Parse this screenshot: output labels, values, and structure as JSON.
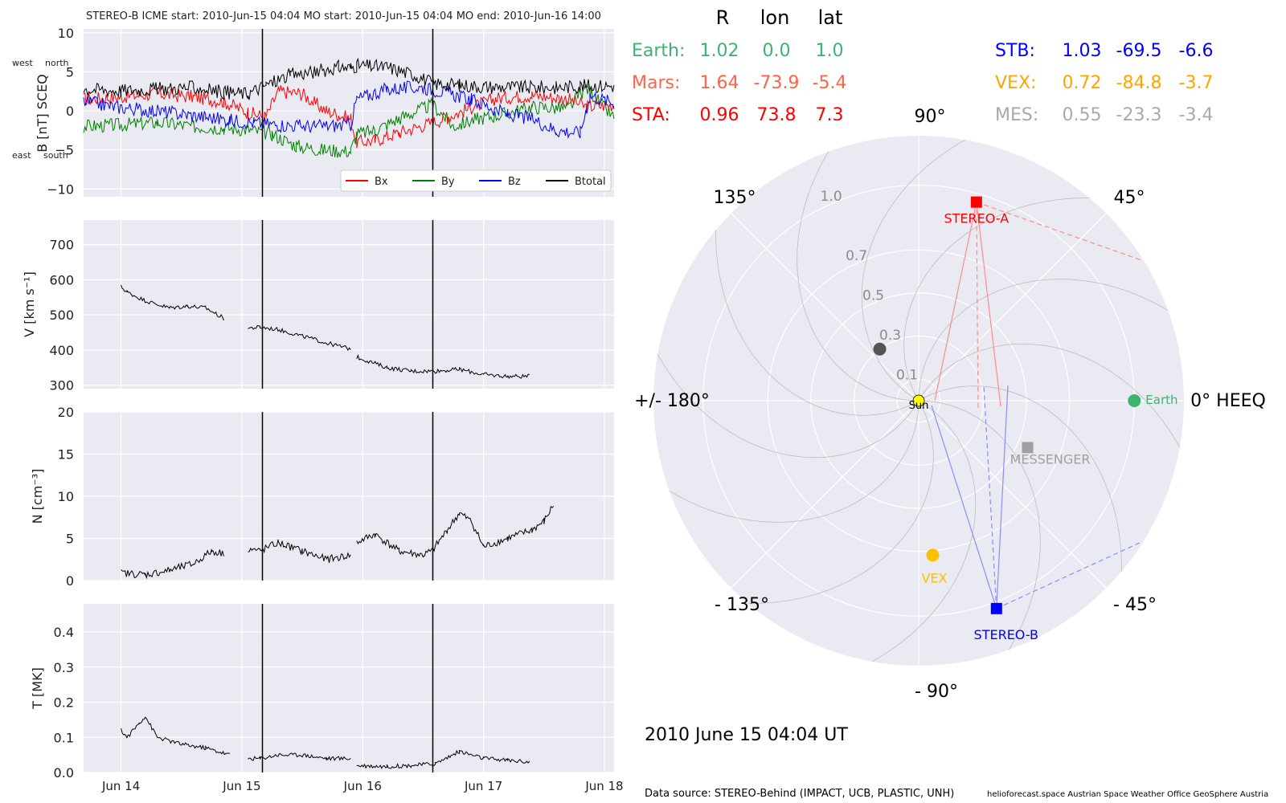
{
  "header": "STEREO-B    ICME start: 2010-Jun-15 04:04   MO start: 2010-Jun-15 04:04   MO end: 2010-Jun-16 14:00",
  "x_ticks": [
    "Jun 14",
    "Jun 15",
    "Jun 16",
    "Jun 17",
    "Jun 18"
  ],
  "chart_data": [
    {
      "type": "line",
      "name": "magnetic field",
      "ylabel": "B [nT] SCEQ",
      "orientation_labels": {
        "west": "west",
        "north": "north",
        "east": "east",
        "south": "south"
      },
      "x_unit": "days since 2010-06-13 00:00",
      "xlim": [
        0.69,
        5.08
      ],
      "ylim": [
        -11,
        10.5
      ],
      "ytick_labels": [
        "−10",
        "−5",
        "0",
        "5",
        "10"
      ],
      "yticks": [
        -10,
        -5,
        0,
        5,
        10
      ],
      "event_lines": [
        2.17,
        3.58
      ],
      "data_gap": [
        1.89,
        2.9
      ],
      "legend": {
        "placement": "lower-right",
        "entries": [
          "Bx",
          "By",
          "Bz",
          "Btotal"
        ]
      },
      "series": [
        {
          "name": "Bx",
          "color": "#ff0000",
          "points": [
            [
              0.69,
              1.5
            ],
            [
              1.0,
              1.8
            ],
            [
              1.3,
              2.2
            ],
            [
              1.6,
              1.8
            ],
            [
              1.85,
              1.2
            ],
            [
              2.05,
              -0.2
            ],
            [
              2.2,
              -0.8
            ],
            [
              2.3,
              2.5
            ],
            [
              2.5,
              2.2
            ],
            [
              2.6,
              1.0
            ],
            [
              2.7,
              0.0
            ],
            [
              2.8,
              -0.5
            ],
            [
              2.9,
              -1.0
            ],
            [
              2.95,
              -4.0
            ],
            [
              3.1,
              -3.8
            ],
            [
              3.3,
              -2.8
            ],
            [
              3.58,
              -1.5
            ],
            [
              3.7,
              -0.8
            ],
            [
              3.9,
              0.4
            ],
            [
              4.1,
              1.6
            ],
            [
              4.4,
              2.0
            ],
            [
              4.7,
              1.5
            ],
            [
              4.85,
              0.5
            ],
            [
              5.08,
              0.8
            ]
          ]
        },
        {
          "name": "By",
          "color": "#008000",
          "points": [
            [
              0.69,
              -2.0
            ],
            [
              1.0,
              -1.8
            ],
            [
              1.3,
              -1.5
            ],
            [
              1.6,
              -2.0
            ],
            [
              1.85,
              -2.2
            ],
            [
              2.05,
              -2.4
            ],
            [
              2.25,
              -3.0
            ],
            [
              2.45,
              -4.5
            ],
            [
              2.65,
              -5.0
            ],
            [
              2.9,
              -5.2
            ],
            [
              2.95,
              -3.0
            ],
            [
              3.1,
              -2.5
            ],
            [
              3.3,
              -1.0
            ],
            [
              3.58,
              0.8
            ],
            [
              3.75,
              -2.0
            ],
            [
              3.95,
              -1.0
            ],
            [
              4.15,
              -0.5
            ],
            [
              4.4,
              0.5
            ],
            [
              4.7,
              0.3
            ],
            [
              4.85,
              3.0
            ],
            [
              5.08,
              -1.0
            ]
          ]
        },
        {
          "name": "Bz",
          "color": "#0000ff",
          "points": [
            [
              0.69,
              1.2
            ],
            [
              0.95,
              0.5
            ],
            [
              1.15,
              0.2
            ],
            [
              1.4,
              -0.2
            ],
            [
              1.7,
              -0.8
            ],
            [
              1.9,
              -1.2
            ],
            [
              2.1,
              -1.5
            ],
            [
              2.3,
              -1.8
            ],
            [
              2.6,
              -2.0
            ],
            [
              2.9,
              -1.8
            ],
            [
              2.95,
              1.5
            ],
            [
              3.2,
              2.8
            ],
            [
              3.5,
              3.0
            ],
            [
              3.7,
              2.3
            ],
            [
              3.9,
              1.4
            ],
            [
              4.05,
              0.5
            ],
            [
              4.2,
              -0.5
            ],
            [
              4.4,
              -1.0
            ],
            [
              4.6,
              -2.5
            ],
            [
              4.8,
              -2.8
            ],
            [
              4.88,
              2.0
            ],
            [
              5.08,
              1.0
            ]
          ]
        },
        {
          "name": "Btotal",
          "color": "#000000",
          "points": [
            [
              0.69,
              2.8
            ],
            [
              1.0,
              2.6
            ],
            [
              1.3,
              2.8
            ],
            [
              1.6,
              3.0
            ],
            [
              1.85,
              2.4
            ],
            [
              2.05,
              2.2
            ],
            [
              2.2,
              3.3
            ],
            [
              2.4,
              4.6
            ],
            [
              2.6,
              5.0
            ],
            [
              2.8,
              5.6
            ],
            [
              2.9,
              5.5
            ],
            [
              2.95,
              5.8
            ],
            [
              3.2,
              5.6
            ],
            [
              3.45,
              4.5
            ],
            [
              3.58,
              3.5
            ],
            [
              3.8,
              3.3
            ],
            [
              4.0,
              3.1
            ],
            [
              4.3,
              3.0
            ],
            [
              4.6,
              3.0
            ],
            [
              4.8,
              3.2
            ],
            [
              5.08,
              3.2
            ]
          ]
        }
      ]
    },
    {
      "type": "line",
      "name": "speed",
      "ylabel": "V [km s⁻¹]",
      "x_unit": "days since 2010-06-13 00:00",
      "xlim": [
        0.69,
        5.08
      ],
      "ylim": [
        290,
        770
      ],
      "yticks": [
        300,
        400,
        500,
        600,
        700
      ],
      "ytick_labels": [
        "300",
        "400",
        "500",
        "600",
        "700"
      ],
      "event_lines": [
        2.17,
        3.58
      ],
      "series": [
        {
          "name": "V",
          "color": "#000000",
          "points": [
            [
              1.0,
              580
            ],
            [
              1.05,
              565
            ],
            [
              1.2,
              540
            ],
            [
              1.4,
              520
            ],
            [
              1.55,
              525
            ],
            [
              1.7,
              520
            ],
            [
              1.85,
              490
            ],
            [
              2.0,
              470
            ],
            [
              2.05,
              462
            ],
            [
              2.15,
              465
            ],
            [
              2.3,
              458
            ],
            [
              2.5,
              440
            ],
            [
              2.7,
              420
            ],
            [
              2.9,
              403
            ],
            [
              2.95,
              380
            ],
            [
              3.2,
              350
            ],
            [
              3.4,
              340
            ],
            [
              3.6,
              340
            ],
            [
              3.8,
              345
            ],
            [
              4.0,
              330
            ],
            [
              4.2,
              325
            ],
            [
              4.38,
              325
            ],
            [
              4.65,
              310
            ],
            [
              4.9,
              308
            ],
            [
              5.08,
              307
            ]
          ]
        }
      ]
    },
    {
      "type": "line",
      "name": "density",
      "ylabel": "N [cm⁻³]",
      "x_unit": "days since 2010-06-13 00:00",
      "xlim": [
        0.69,
        5.08
      ],
      "ylim": [
        0,
        20
      ],
      "yticks": [
        0,
        5,
        10,
        15,
        20
      ],
      "ytick_labels": [
        "0",
        "5",
        "10",
        "15",
        "20"
      ],
      "event_lines": [
        2.17,
        3.58
      ],
      "series": [
        {
          "name": "N",
          "color": "#000000",
          "points": [
            [
              1.0,
              0.9
            ],
            [
              1.2,
              0.7
            ],
            [
              1.4,
              1.2
            ],
            [
              1.6,
              2.0
            ],
            [
              1.75,
              3.5
            ],
            [
              1.85,
              3.2
            ],
            [
              2.0,
              3.0
            ],
            [
              2.05,
              3.8
            ],
            [
              2.15,
              3.5
            ],
            [
              2.3,
              4.5
            ],
            [
              2.5,
              3.5
            ],
            [
              2.7,
              2.5
            ],
            [
              2.9,
              3.0
            ],
            [
              2.95,
              4.5
            ],
            [
              3.1,
              5.5
            ],
            [
              3.3,
              3.5
            ],
            [
              3.5,
              3.0
            ],
            [
              3.58,
              3.6
            ],
            [
              3.7,
              6.0
            ],
            [
              3.8,
              8.0
            ],
            [
              3.9,
              7.0
            ],
            [
              4.0,
              4.0
            ],
            [
              4.2,
              5.0
            ],
            [
              4.4,
              6.0
            ],
            [
              4.5,
              7.0
            ],
            [
              4.58,
              9.0
            ],
            [
              4.65,
              5.5
            ],
            [
              4.9,
              4.5
            ],
            [
              5.08,
              5.0
            ]
          ]
        }
      ]
    },
    {
      "type": "line",
      "name": "temperature",
      "ylabel": "T [MK]",
      "x_unit": "days since 2010-06-13 00:00",
      "xlim": [
        0.69,
        5.08
      ],
      "ylim": [
        0,
        0.48
      ],
      "yticks": [
        0,
        0.1,
        0.2,
        0.3,
        0.4
      ],
      "ytick_labels": [
        "0.0",
        "0.1",
        "0.2",
        "0.3",
        "0.4"
      ],
      "event_lines": [
        2.17,
        3.58
      ],
      "series": [
        {
          "name": "T",
          "color": "#000000",
          "points": [
            [
              1.0,
              0.12
            ],
            [
              1.05,
              0.1
            ],
            [
              1.15,
              0.14
            ],
            [
              1.2,
              0.16
            ],
            [
              1.3,
              0.1
            ],
            [
              1.5,
              0.08
            ],
            [
              1.7,
              0.07
            ],
            [
              1.9,
              0.05
            ],
            [
              2.05,
              0.04
            ],
            [
              2.15,
              0.04
            ],
            [
              2.3,
              0.05
            ],
            [
              2.5,
              0.05
            ],
            [
              2.7,
              0.04
            ],
            [
              2.9,
              0.04
            ],
            [
              2.95,
              0.02
            ],
            [
              3.2,
              0.017
            ],
            [
              3.4,
              0.02
            ],
            [
              3.6,
              0.025
            ],
            [
              3.8,
              0.06
            ],
            [
              4.0,
              0.04
            ],
            [
              4.2,
              0.035
            ],
            [
              4.38,
              0.03
            ],
            [
              4.65,
              0.03
            ],
            [
              4.9,
              0.025
            ],
            [
              5.08,
              0.025
            ]
          ]
        }
      ]
    },
    {
      "type": "scatter",
      "name": "HEEQ polar position",
      "coordinate_system": "0° HEEQ",
      "radial_ticks": [
        0.1,
        0.3,
        0.5,
        0.7,
        1.0
      ],
      "radial_tick_labels": [
        "0.1",
        "0.3",
        "0.5",
        "0.7",
        "1.0"
      ],
      "angle_labels": [
        "0° HEEQ",
        "45°",
        "90°",
        "135°",
        "+/- 180°",
        "- 135°",
        "- 90°",
        "- 45°"
      ],
      "rmax": 1.23,
      "bodies": [
        {
          "name": "Sun",
          "label": "Sun",
          "r": 0.0,
          "lon": 0.0,
          "color": "#ffff00",
          "marker": "circle"
        },
        {
          "name": "Earth",
          "label": "Earth",
          "r": 1.0,
          "lon": 0.0,
          "color": "#3cb371",
          "marker": "circle"
        },
        {
          "name": "STEREO-A",
          "label": "STEREO-A",
          "r": 0.96,
          "lon": 73.8,
          "color": "#ff0000",
          "marker": "square"
        },
        {
          "name": "STEREO-B",
          "label": "STEREO-B",
          "r": 1.03,
          "lon": -69.5,
          "color": "#0000ff",
          "marker": "square"
        },
        {
          "name": "VEX",
          "label": "VEX",
          "r": 0.72,
          "lon": -84.8,
          "color": "#ffc000",
          "marker": "circle"
        },
        {
          "name": "MESSENGER",
          "label": "MESSENGER",
          "r": 0.55,
          "lon": -23.3,
          "color": "#a0a0a0",
          "marker": "square"
        },
        {
          "name": "Mercury",
          "label": "",
          "r": 0.3,
          "lon": 127,
          "color": "#555555",
          "marker": "circle"
        }
      ]
    }
  ],
  "position_table": {
    "headers": [
      "R",
      "lon",
      "lat"
    ],
    "left": [
      {
        "label": "Earth:",
        "R": "1.02",
        "lon": "0.0",
        "lat": "1.0",
        "color": "#3cb371"
      },
      {
        "label": "Mars:",
        "R": "1.64",
        "lon": "-73.9",
        "lat": "-5.4",
        "color": "#ff6347"
      },
      {
        "label": "STA:",
        "R": "0.96",
        "lon": "73.8",
        "lat": "7.3",
        "color": "#ff0000"
      }
    ],
    "right": [
      {
        "label": "STB:",
        "R": "1.03",
        "lon": "-69.5",
        "lat": "-6.6",
        "color": "#0000ff"
      },
      {
        "label": "VEX:",
        "R": "0.72",
        "lon": "-84.8",
        "lat": "-3.7",
        "color": "#ffa500"
      },
      {
        "label": "MES:",
        "R": "0.55",
        "lon": "-23.3",
        "lat": "-3.4",
        "color": "#a9a9a9"
      }
    ]
  },
  "datetime": "2010 June 15  04:04 UT",
  "footer": {
    "source": "Data source: STEREO-Behind (IMPACT, UCB, PLASTIC, UNH)",
    "credits": "helioforecast.space   Austrian Space Weather Office   GeoSphere Austria"
  }
}
